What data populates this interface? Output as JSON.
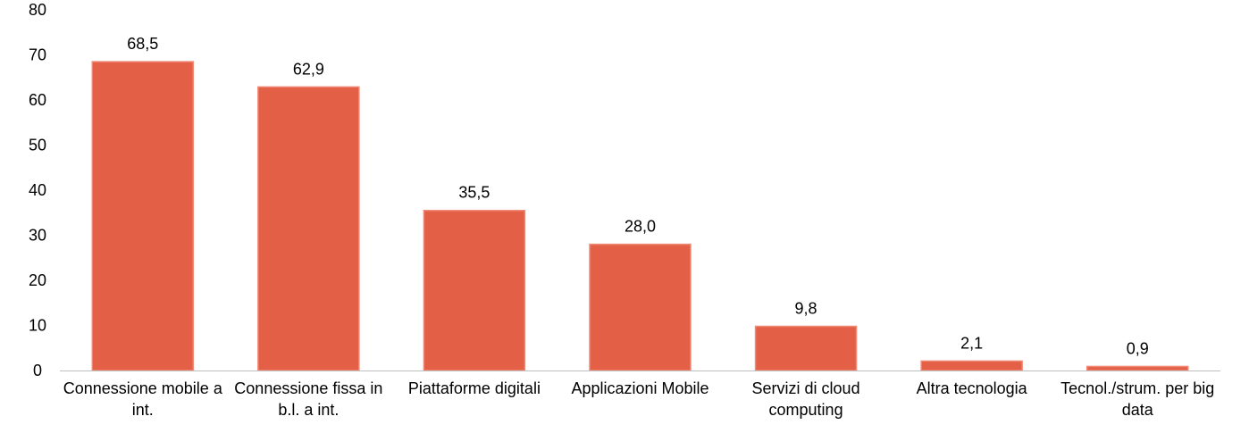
{
  "chart_data": {
    "type": "bar",
    "categories": [
      [
        "Connessione mobile a",
        "int."
      ],
      [
        "Connessione fissa in",
        "b.l. a int."
      ],
      [
        "Piattaforme digitali"
      ],
      [
        "Applicazioni Mobile"
      ],
      [
        "Servizi di cloud",
        "computing"
      ],
      [
        "Altra tecnologia"
      ],
      [
        "Tecnol./strum. per big",
        "data"
      ]
    ],
    "values": [
      68.5,
      62.9,
      35.5,
      28.0,
      9.8,
      2.1,
      0.9
    ],
    "data_labels": [
      "68,5",
      "62,9",
      "35,5",
      "28,0",
      "9,8",
      "2,1",
      "0,9"
    ],
    "y_ticks": [
      "0",
      "10",
      "20",
      "30",
      "40",
      "50",
      "60",
      "70",
      "80"
    ],
    "ylim": [
      0,
      80
    ],
    "grid": false,
    "bar_color": "#E35F45",
    "bar_edge_color": "#F08A78",
    "axis_color": "#BFBFBF"
  }
}
